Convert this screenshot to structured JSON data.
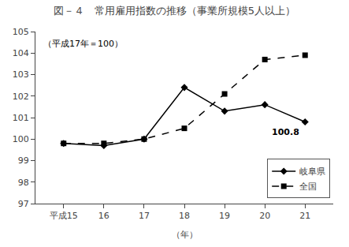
{
  "chart_data": {
    "type": "line",
    "title": "図－４　常用雇用指数の推移（事業所規模5人以上）",
    "subtitle": "（平成17年＝100）",
    "xlabel": "（年）",
    "x": [
      15,
      16,
      17,
      18,
      19,
      20,
      21
    ],
    "series": [
      {
        "name": "岐阜県",
        "color": "#000000",
        "marker": "diamond",
        "line_style": "solid",
        "values": [
          99.8,
          99.7,
          100.0,
          102.4,
          101.3,
          101.6,
          100.8
        ]
      },
      {
        "name": "全国",
        "color": "#000000",
        "marker": "square",
        "line_style": "dashed",
        "values": [
          99.8,
          99.8,
          100.0,
          100.5,
          102.1,
          103.7,
          103.9
        ]
      }
    ],
    "xlim": [
      14.3,
      21.7
    ],
    "xticks": [
      {
        "value": 15,
        "label": "平成15"
      },
      16,
      17,
      18,
      19,
      20,
      21
    ],
    "ylim": [
      97,
      105
    ],
    "yticks": [
      97,
      98,
      99,
      100,
      101,
      102,
      103,
      104,
      105
    ],
    "annotations": [
      {
        "text": "100.8",
        "x": 21,
        "y": 100.8
      }
    ],
    "grid": false,
    "legend": "lower right"
  }
}
